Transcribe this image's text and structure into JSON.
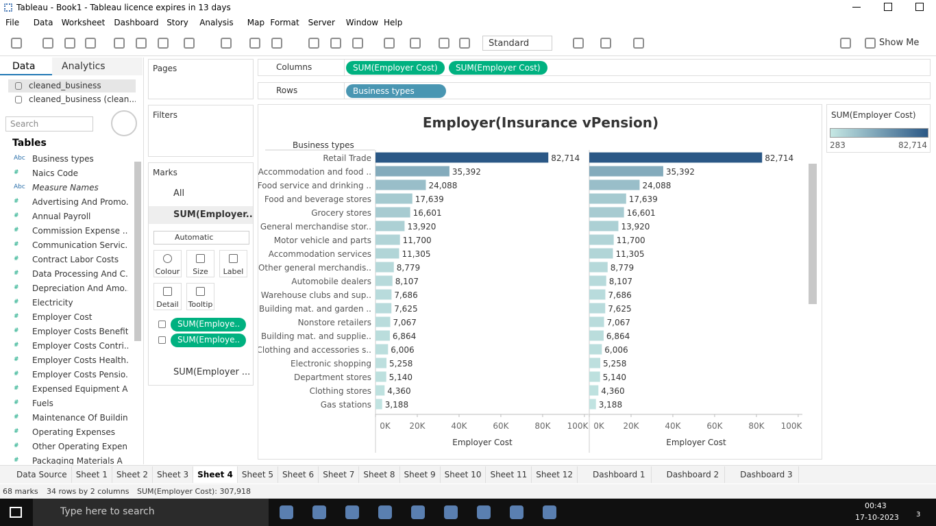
{
  "window": {
    "title": "Tableau - Book1 - Tableau licence expires in 13 days"
  },
  "menu": [
    "File",
    "Data",
    "Worksheet",
    "Dashboard",
    "Story",
    "Analysis",
    "Map",
    "Format",
    "Server",
    "Window",
    "Help"
  ],
  "toolbar": {
    "fit": "Standard",
    "show_me": "Show Me"
  },
  "data_pane": {
    "tabs": [
      "Data",
      "Analytics"
    ],
    "sources": [
      "cleaned_business",
      "cleaned_business (clean..."
    ],
    "search": "Search",
    "tables_heading": "Tables",
    "fields": [
      {
        "type": "Abc",
        "name": "Business types"
      },
      {
        "type": "#",
        "name": "Naics Code"
      },
      {
        "type": "Abc",
        "name": "Measure Names"
      },
      {
        "type": "#",
        "name": "Advertising And Promo..."
      },
      {
        "type": "#",
        "name": "Annual Payroll"
      },
      {
        "type": "#",
        "name": "Commission Expense ..."
      },
      {
        "type": "#",
        "name": "Communication Servic..."
      },
      {
        "type": "#",
        "name": "Contract Labor Costs"
      },
      {
        "type": "#",
        "name": "Data Processing And C..."
      },
      {
        "type": "#",
        "name": "Depreciation And Amo..."
      },
      {
        "type": "#",
        "name": "Electricity"
      },
      {
        "type": "#",
        "name": "Employer Cost"
      },
      {
        "type": "#",
        "name": "Employer Costs Benefits"
      },
      {
        "type": "#",
        "name": "Employer Costs Contri..."
      },
      {
        "type": "#",
        "name": "Employer Costs Health..."
      },
      {
        "type": "#",
        "name": "Employer Costs Pensio..."
      },
      {
        "type": "#",
        "name": "Expensed Equipment A..."
      },
      {
        "type": "#",
        "name": "Fuels"
      },
      {
        "type": "#",
        "name": "Maintenance Of Buildin..."
      },
      {
        "type": "#",
        "name": "Operating Expenses"
      },
      {
        "type": "#",
        "name": "Other Operating Expen..."
      },
      {
        "type": "#",
        "name": "Packaging Materials A"
      }
    ]
  },
  "shelves": {
    "pages": "Pages",
    "filters": "Filters",
    "columns": {
      "label": "Columns",
      "pills": [
        "SUM(Employer Cost)",
        "SUM(Employer Cost)"
      ]
    },
    "rows": {
      "label": "Rows",
      "pills": [
        "Business types"
      ]
    }
  },
  "marks": {
    "title": "Marks",
    "all": "All",
    "first": "SUM(Employer...",
    "mark_type": "Automatic",
    "buttons": [
      "Colour",
      "Size",
      "Label",
      "Detail",
      "Tooltip"
    ],
    "pills": [
      "SUM(Employe..",
      "SUM(Employe.."
    ],
    "second": "SUM(Employer ..."
  },
  "chart_data": {
    "type": "bar",
    "title": "Employer(Insurance vPension)",
    "row_header": "Business types",
    "categories": [
      "Retail Trade",
      "Accommodation and food ..",
      "Food service and drinking ..",
      "Food and beverage stores",
      "Grocery stores",
      "General merchandise stor..",
      "Motor vehicle and parts",
      "Accommodation services",
      "Other general merchandis..",
      "Automobile dealers",
      "Warehouse clubs and sup..",
      "Building mat. and garden ..",
      "Nonstore retailers",
      "Building mat. and supplie..",
      "Clothing and accessories s..",
      "Electronic shopping",
      "Department stores",
      "Clothing stores",
      "Gas stations"
    ],
    "panels": [
      {
        "x_label": "Employer Cost",
        "values": [
          82714,
          35392,
          24088,
          17639,
          16601,
          13920,
          11700,
          11305,
          8779,
          8107,
          7686,
          7625,
          7067,
          6864,
          6006,
          5258,
          5140,
          4360,
          3188
        ],
        "value_labels": [
          "82,714",
          "35,392",
          "24,088",
          "17,639",
          "16,601",
          "13,920",
          "11,700",
          "11,305",
          "8,779",
          "8,107",
          "7,686",
          "7,625",
          "7,067",
          "6,864",
          "6,006",
          "5,258",
          "5,140",
          "4,360",
          "3,188"
        ],
        "xlim": [
          0,
          102000
        ],
        "xticks": [
          {
            "value": 0,
            "label": "0K"
          },
          {
            "value": 20000,
            "label": "20K"
          },
          {
            "value": 40000,
            "label": "40K"
          },
          {
            "value": 60000,
            "label": "60K"
          },
          {
            "value": 80000,
            "label": "80K"
          },
          {
            "value": 100000,
            "label": "100K"
          }
        ]
      },
      {
        "x_label": "Employer Cost",
        "values": [
          82714,
          35392,
          24088,
          17639,
          16601,
          13920,
          11700,
          11305,
          8779,
          8107,
          7686,
          7625,
          7067,
          6864,
          6006,
          5258,
          5140,
          4360,
          3188
        ],
        "value_labels": [
          "82,714",
          "35,392",
          "24,088",
          "17,639",
          "16,601",
          "13,920",
          "11,700",
          "11,305",
          "8,779",
          "8,107",
          "7,686",
          "7,625",
          "7,067",
          "6,864",
          "6,006",
          "5,258",
          "5,140",
          "4,360",
          "3,188"
        ],
        "xlim": [
          0,
          102000
        ],
        "xticks": [
          {
            "value": 0,
            "label": "0K"
          },
          {
            "value": 20000,
            "label": "20K"
          },
          {
            "value": 40000,
            "label": "40K"
          },
          {
            "value": 60000,
            "label": "60K"
          },
          {
            "value": 80000,
            "label": "80K"
          },
          {
            "value": 100000,
            "label": "100K"
          }
        ]
      }
    ],
    "legend": {
      "title": "SUM(Employer Cost)",
      "min": {
        "value": 283,
        "label": "283"
      },
      "max": {
        "value": 82714,
        "label": "82,714"
      },
      "colors": [
        "#c6e8e4",
        "#2b5886"
      ]
    }
  },
  "sheet_tabs": {
    "tabs": [
      "Data Source",
      "Sheet 1",
      "Sheet 2",
      "Sheet 3",
      "Sheet 4",
      "Sheet 5",
      "Sheet 6",
      "Sheet 7",
      "Sheet 8",
      "Sheet 9",
      "Sheet 10",
      "Sheet 11",
      "Sheet 12",
      "Dashboard 1",
      "Dashboard 2",
      "Dashboard 3"
    ],
    "active": "Sheet 4"
  },
  "status_bar": [
    "68 marks",
    "34 rows  by  2 columns",
    "SUM(Employer Cost): 307,918"
  ],
  "taskbar": {
    "search": "Type here to search",
    "time": "00:43",
    "date": "17-10-2023",
    "notifications": "3"
  }
}
